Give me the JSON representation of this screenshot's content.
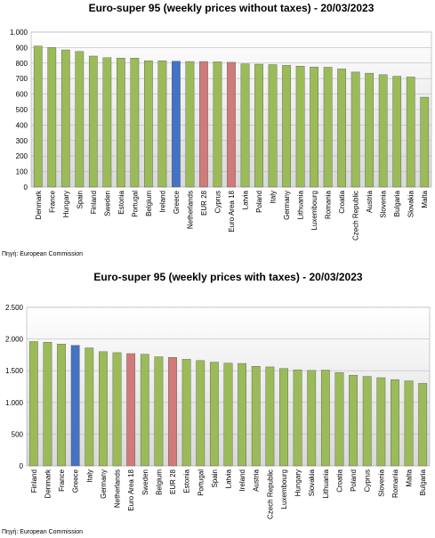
{
  "chart_data": [
    {
      "type": "bar",
      "title": "Euro-super 95 (weekly prices without taxes) - 20/03/2023",
      "source": "Πηγή: European Commission",
      "categories": [
        "Denmark",
        "France",
        "Hungary",
        "Spain",
        "Finland",
        "Sweden",
        "Estonia",
        "Portugal",
        "Belgium",
        "Ireland",
        "Greece",
        "Netherlands",
        "EUR 28",
        "Cyprus",
        "Euro Area 18",
        "Latvia",
        "Poland",
        "Italy",
        "Germany",
        "Lithuania",
        "Luxembourg",
        "Romania",
        "Croatia",
        "Czech Republic",
        "Austria",
        "Slovenia",
        "Bulgaria",
        "Slovakia",
        "Malta"
      ],
      "values": [
        910,
        900,
        885,
        875,
        845,
        835,
        832,
        832,
        815,
        815,
        812,
        810,
        810,
        808,
        805,
        795,
        793,
        790,
        785,
        780,
        775,
        773,
        762,
        742,
        735,
        725,
        715,
        710,
        580
      ],
      "colors": [
        "#9bbb59",
        "#9bbb59",
        "#9bbb59",
        "#9bbb59",
        "#9bbb59",
        "#9bbb59",
        "#9bbb59",
        "#9bbb59",
        "#9bbb59",
        "#9bbb59",
        "#4472c4",
        "#9bbb59",
        "#d07a7a",
        "#9bbb59",
        "#d07a7a",
        "#9bbb59",
        "#9bbb59",
        "#9bbb59",
        "#9bbb59",
        "#9bbb59",
        "#9bbb59",
        "#9bbb59",
        "#9bbb59",
        "#9bbb59",
        "#9bbb59",
        "#9bbb59",
        "#9bbb59",
        "#9bbb59",
        "#9bbb59"
      ],
      "ylim": [
        0,
        1000
      ],
      "yticks": [
        0,
        100,
        200,
        300,
        400,
        500,
        600,
        700,
        800,
        900,
        {
          "value": 1000,
          "label": "1.000"
        }
      ],
      "grid": true
    },
    {
      "type": "bar",
      "title": "Euro-super 95 (weekly prices with taxes) - 20/03/2023",
      "source": "Πηγή: European Commission",
      "categories": [
        "Finland",
        "Denmark",
        "France",
        "Greece",
        "Italy",
        "Germany",
        "Netherlands",
        "Euro Area 18",
        "Sweden",
        "Belgium",
        "EUR 28",
        "Estonia",
        "Portugal",
        "Spain",
        "Latvia",
        "Ireland",
        "Austria",
        "Czech Republic",
        "Luxembourg",
        "Hungary",
        "Slovakia",
        "Lithuania",
        "Croatia",
        "Poland",
        "Cyprus",
        "Slovenia",
        "Romania",
        "Malta",
        "Bulgaria"
      ],
      "values": [
        1960,
        1950,
        1920,
        1900,
        1860,
        1800,
        1785,
        1770,
        1760,
        1720,
        1710,
        1680,
        1660,
        1635,
        1620,
        1615,
        1570,
        1560,
        1535,
        1515,
        1505,
        1510,
        1470,
        1430,
        1410,
        1390,
        1360,
        1340,
        1300
      ],
      "colors": [
        "#9bbb59",
        "#9bbb59",
        "#9bbb59",
        "#4472c4",
        "#9bbb59",
        "#9bbb59",
        "#9bbb59",
        "#d07a7a",
        "#9bbb59",
        "#9bbb59",
        "#d07a7a",
        "#9bbb59",
        "#9bbb59",
        "#9bbb59",
        "#9bbb59",
        "#9bbb59",
        "#9bbb59",
        "#9bbb59",
        "#9bbb59",
        "#9bbb59",
        "#9bbb59",
        "#9bbb59",
        "#9bbb59",
        "#9bbb59",
        "#9bbb59",
        "#9bbb59",
        "#9bbb59",
        "#9bbb59",
        "#9bbb59"
      ],
      "ylim": [
        0,
        2500
      ],
      "yticks": [
        0,
        {
          "value": 500,
          "label": "500"
        },
        {
          "value": 1000,
          "label": "1.000"
        },
        {
          "value": 1500,
          "label": "1.500"
        },
        {
          "value": 2000,
          "label": "2.000"
        },
        {
          "value": 2500,
          "label": "2.500"
        }
      ],
      "grid": true
    }
  ]
}
